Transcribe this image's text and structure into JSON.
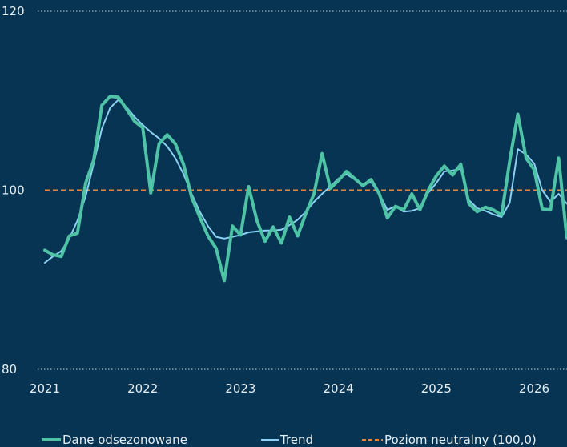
{
  "chart_data": {
    "type": "line",
    "title": "",
    "xlabel": "",
    "ylabel": "",
    "xlim": [
      2021.0,
      2026.35
    ],
    "ylim": [
      80,
      120
    ],
    "x_ticks": [
      2021,
      2022,
      2023,
      2024,
      2025,
      2026
    ],
    "x_tick_labels": [
      "2021",
      "2022",
      "2023",
      "2024",
      "2025",
      "2026"
    ],
    "y_ticks": [
      80,
      100,
      120
    ],
    "y_tick_labels": [
      "80",
      "100",
      "120"
    ],
    "grid": "horizontal dotted at 80 and 120",
    "legend_position": "bottom",
    "reference_line": {
      "value": 100,
      "name": "Poziom neutralny (100,0)",
      "color": "#e8883a",
      "style": "dashed"
    },
    "series": [
      {
        "name": "Dane odsezonowane",
        "color": "#4ec3a5",
        "x": [
          2021.0,
          2021.083,
          2021.167,
          2021.25,
          2021.333,
          2021.417,
          2021.5,
          2021.583,
          2021.667,
          2021.75,
          2021.833,
          2021.917,
          2022.0,
          2022.083,
          2022.167,
          2022.25,
          2022.333,
          2022.417,
          2022.5,
          2022.583,
          2022.667,
          2022.75,
          2022.833,
          2022.917,
          2023.0,
          2023.083,
          2023.167,
          2023.25,
          2023.333,
          2023.417,
          2023.5,
          2023.583,
          2023.667,
          2023.75,
          2023.833,
          2023.917,
          2024.0,
          2024.083,
          2024.167,
          2024.25,
          2024.333,
          2024.417,
          2024.5,
          2024.583,
          2024.667,
          2024.75,
          2024.833,
          2024.917,
          2025.0,
          2025.083,
          2025.167,
          2025.25,
          2025.333,
          2025.417,
          2025.5,
          2025.583,
          2025.667,
          2025.75,
          2025.833,
          2025.917,
          2026.0,
          2026.083,
          2026.167,
          2026.25,
          2026.333
        ],
        "values": [
          93.3,
          92.8,
          92.6,
          94.9,
          95.2,
          100.8,
          103.4,
          109.5,
          110.5,
          110.4,
          109.1,
          107.7,
          107.0,
          99.7,
          105.2,
          106.2,
          105.2,
          102.9,
          99.2,
          97.0,
          94.9,
          93.5,
          89.9,
          96.0,
          95.0,
          100.4,
          96.6,
          94.3,
          95.9,
          94.1,
          97.0,
          94.9,
          97.4,
          99.6,
          104.1,
          100.2,
          101.1,
          102.1,
          101.3,
          100.5,
          101.2,
          99.6,
          96.9,
          98.2,
          97.8,
          99.6,
          97.8,
          100.0,
          101.6,
          102.7,
          101.7,
          102.9,
          98.5,
          97.6,
          98.1,
          97.8,
          97.2,
          103.3,
          108.5,
          103.6,
          102.3,
          97.9,
          97.8,
          103.6,
          94.7
        ]
      },
      {
        "name": "Trend",
        "color": "#8cd2f5",
        "x": [
          2021.0,
          2021.083,
          2021.167,
          2021.25,
          2021.333,
          2021.417,
          2021.5,
          2021.583,
          2021.667,
          2021.75,
          2021.833,
          2021.917,
          2022.0,
          2022.083,
          2022.167,
          2022.25,
          2022.333,
          2022.417,
          2022.5,
          2022.583,
          2022.667,
          2022.75,
          2022.833,
          2022.917,
          2023.0,
          2023.083,
          2023.167,
          2023.25,
          2023.333,
          2023.417,
          2023.5,
          2023.583,
          2023.667,
          2023.75,
          2023.833,
          2023.917,
          2024.0,
          2024.083,
          2024.167,
          2024.25,
          2024.333,
          2024.417,
          2024.5,
          2024.583,
          2024.667,
          2024.75,
          2024.833,
          2024.917,
          2025.0,
          2025.083,
          2025.167,
          2025.25,
          2025.333,
          2025.417,
          2025.5,
          2025.583,
          2025.667,
          2025.75,
          2025.833,
          2025.917,
          2026.0,
          2026.083,
          2026.167,
          2026.25,
          2026.333
        ],
        "values": [
          91.9,
          92.6,
          93.2,
          94.6,
          96.6,
          99.3,
          103.0,
          106.9,
          109.2,
          110.1,
          109.3,
          108.2,
          107.3,
          106.5,
          105.8,
          104.9,
          103.6,
          101.8,
          99.6,
          97.6,
          96.0,
          94.8,
          94.6,
          94.8,
          95.0,
          95.3,
          95.4,
          95.5,
          95.5,
          95.6,
          96.1,
          96.7,
          97.6,
          98.7,
          99.6,
          100.4,
          101.3,
          101.8,
          101.2,
          100.6,
          100.9,
          99.6,
          97.8,
          98.2,
          97.6,
          97.7,
          98.0,
          99.7,
          100.8,
          102.1,
          102.2,
          102.4,
          98.9,
          98.0,
          97.7,
          97.3,
          97.0,
          98.6,
          104.6,
          104.0,
          103.0,
          100.0,
          98.7,
          99.6,
          98.5
        ]
      }
    ]
  }
}
